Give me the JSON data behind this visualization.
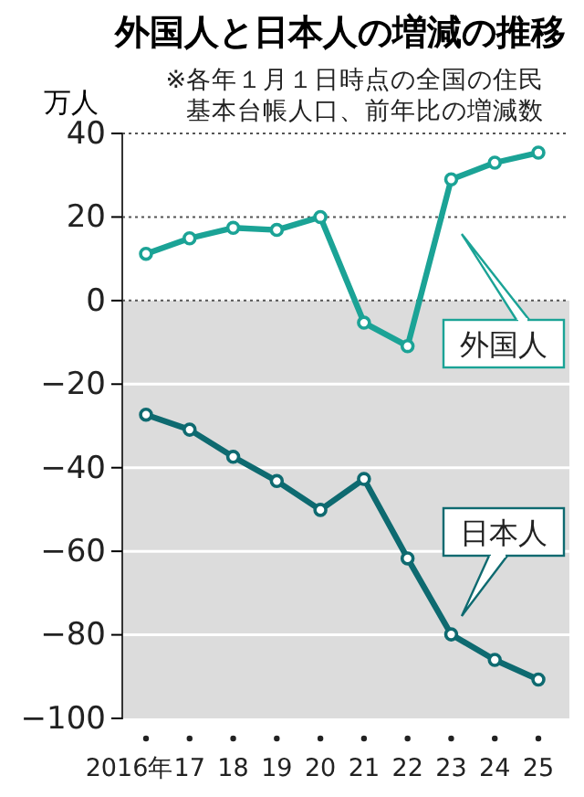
{
  "chart_data": {
    "type": "line",
    "title": "外国人と日本人の増減の推移",
    "subtitle": "※各年１月１日時点の全国の住民基本台帳人口、前年比の増減数",
    "ylabel": "万人",
    "categories": [
      "2016年",
      "17",
      "18",
      "19",
      "20",
      "21",
      "22",
      "23",
      "24",
      "25"
    ],
    "series": [
      {
        "name": "外国人",
        "color": "#1ba396",
        "values": [
          11.2,
          14.9,
          17.4,
          16.9,
          20,
          -5.3,
          -10.9,
          29,
          33,
          35.4
        ]
      },
      {
        "name": "日本人",
        "color": "#0e6a70",
        "values": [
          -27.3,
          -30.9,
          -37.4,
          -43.2,
          -50.1,
          -42.7,
          -61.7,
          -79.9,
          -86,
          -90.7
        ]
      }
    ],
    "ylim": [
      -100,
      40
    ],
    "yticks": [
      -100,
      -80,
      -60,
      -40,
      -20,
      0,
      20,
      40
    ],
    "grid": "y",
    "marker": "circle",
    "line_style": "solid",
    "bands": [
      {
        "axis": "y",
        "from": -100,
        "to": 0,
        "color": "#dcdcdc"
      }
    ]
  }
}
